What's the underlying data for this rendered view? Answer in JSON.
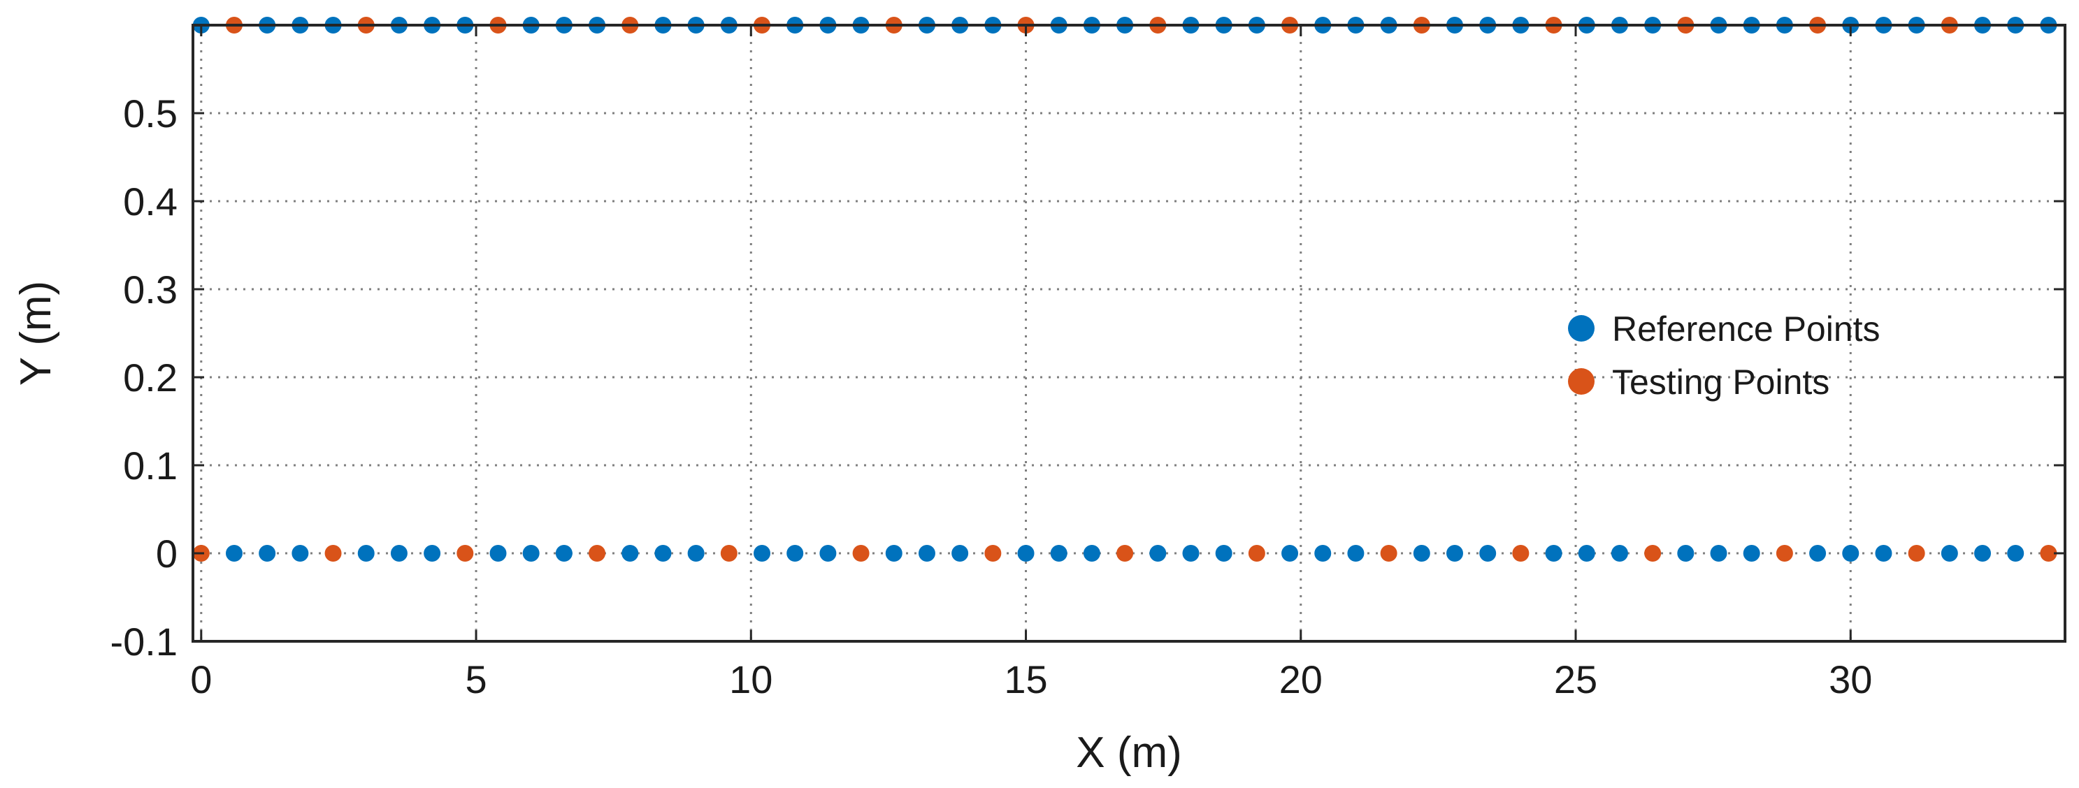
{
  "chart_data": {
    "type": "scatter",
    "xlabel": "X (m)",
    "ylabel": "Y (m)",
    "xlim": [
      -0.15,
      33.9
    ],
    "ylim": [
      -0.1,
      0.6
    ],
    "xticks": [
      0,
      5,
      10,
      15,
      20,
      25,
      30
    ],
    "yticks": [
      -0.1,
      0,
      0.1,
      0.2,
      0.3,
      0.4,
      0.5
    ],
    "grid": true,
    "legend_position": "center-right",
    "series": [
      {
        "name": "Reference Points",
        "color": "#0072BD",
        "rows": [
          {
            "y": 0.6,
            "x": [
              0,
              1.2,
              1.8,
              2.4,
              3.6,
              4.2,
              4.8,
              6.0,
              6.6,
              7.2,
              8.4,
              9.0,
              9.6,
              10.8,
              11.4,
              12.0,
              13.2,
              13.8,
              14.4,
              15.6,
              16.2,
              16.8,
              18.0,
              18.6,
              19.2,
              20.4,
              21.0,
              21.6,
              22.8,
              23.4,
              24.0,
              25.2,
              25.8,
              26.4,
              27.6,
              28.2,
              28.8,
              30.0,
              30.6,
              31.2,
              32.4,
              33.0,
              33.6
            ]
          },
          {
            "y": 0,
            "x": [
              0.6,
              1.2,
              1.8,
              3.0,
              3.6,
              4.2,
              5.4,
              6.0,
              6.6,
              7.8,
              8.4,
              9.0,
              10.2,
              10.8,
              11.4,
              12.6,
              13.2,
              13.8,
              15.0,
              15.6,
              16.2,
              17.4,
              18.0,
              18.6,
              19.8,
              20.4,
              21.0,
              22.2,
              22.8,
              23.4,
              24.6,
              25.2,
              25.8,
              27.0,
              27.6,
              28.2,
              29.4,
              30.0,
              30.6,
              31.8,
              32.4,
              33.0
            ]
          }
        ]
      },
      {
        "name": "Testing Points",
        "color": "#D95319",
        "rows": [
          {
            "y": 0.6,
            "x": [
              0.6,
              3.0,
              5.4,
              7.8,
              10.2,
              12.6,
              15.0,
              17.4,
              19.8,
              22.2,
              24.6,
              27.0,
              29.4,
              31.8
            ]
          },
          {
            "y": 0,
            "x": [
              0,
              2.4,
              4.8,
              7.2,
              9.6,
              12.0,
              14.4,
              16.8,
              19.2,
              21.6,
              24.0,
              26.4,
              28.8,
              31.2,
              33.6
            ]
          }
        ]
      }
    ]
  }
}
